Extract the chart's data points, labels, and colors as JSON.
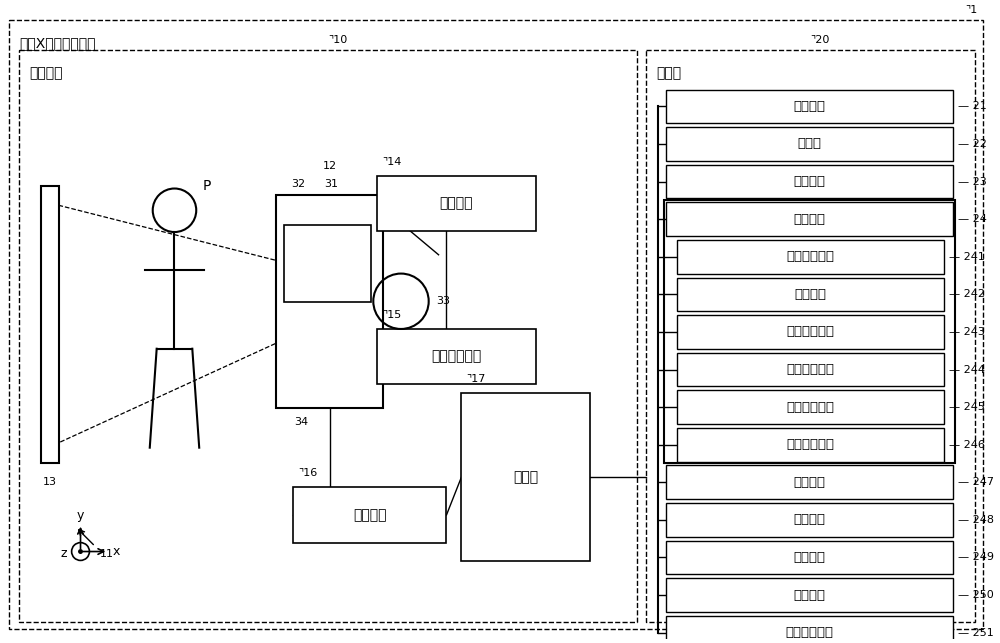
{
  "bg_color": "#ffffff",
  "outer_label": "一般X射线摄像装置",
  "outer_num": "1",
  "imaging_label": "摄像装置",
  "imaging_num": "10",
  "control_label": "控制台",
  "control_num": "20",
  "right_boxes": [
    {
      "label": "输入接口",
      "num": "21"
    },
    {
      "label": "显示器",
      "num": "22"
    },
    {
      "label": "存储电路",
      "num": "23"
    },
    {
      "label": "处理电路",
      "num": "24"
    },
    {
      "label": "显示控制功能",
      "num": "241"
    },
    {
      "label": "受理功能",
      "num": "242"
    },
    {
      "label": "摄像控制功能",
      "num": "243"
    },
    {
      "label": "图像生成功能",
      "num": "244"
    },
    {
      "label": "第一取得功能",
      "num": "245"
    },
    {
      "label": "第二取得功能",
      "num": "246"
    },
    {
      "label": "确定功能",
      "num": "247"
    },
    {
      "label": "判定功能",
      "num": "248"
    },
    {
      "label": "输出功能",
      "num": "249"
    },
    {
      "label": "计算功能",
      "num": "250"
    },
    {
      "label": "移动控制功能",
      "num": "251"
    }
  ],
  "left_boxes": [
    {
      "label": "高压电源",
      "num": "14"
    },
    {
      "label": "光阑控制装置",
      "num": "15"
    },
    {
      "label": "驱动电路",
      "num": "16"
    },
    {
      "label": "控制器",
      "num": "17"
    }
  ]
}
